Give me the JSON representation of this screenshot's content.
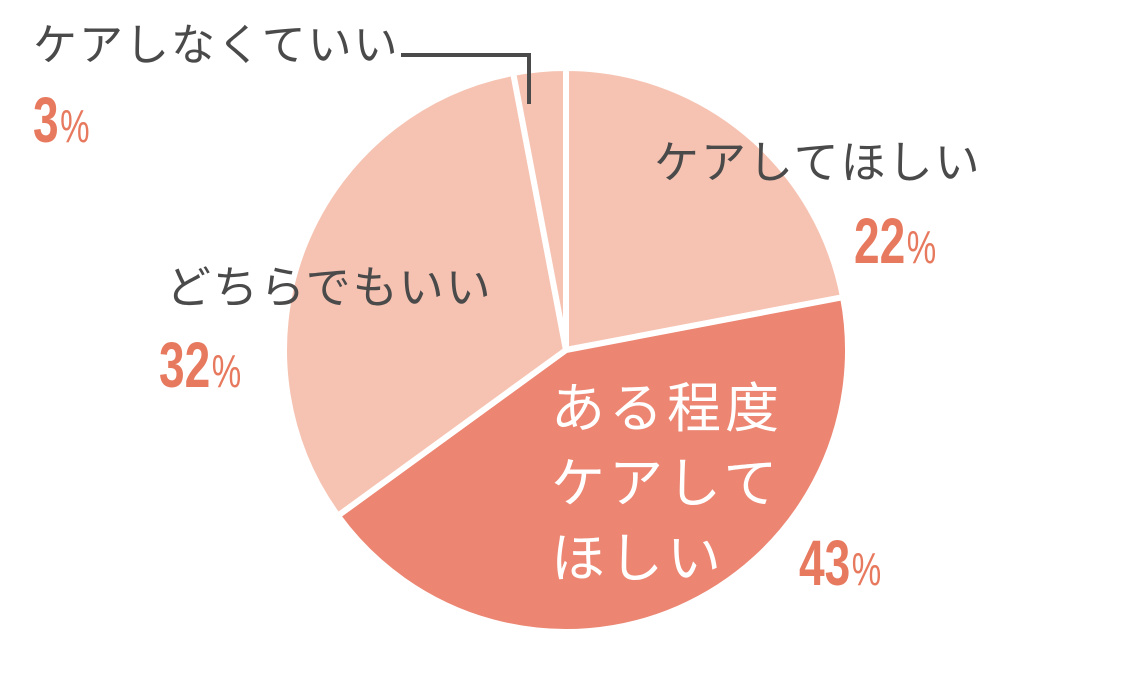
{
  "chart_data": {
    "type": "pie",
    "title": "",
    "unit": "%",
    "direction": "clockwise",
    "start_angle_deg": 0,
    "legend": "none",
    "background_color": "#ffffff",
    "separator_color": "#ffffff",
    "label_color": "#4a4a4a",
    "percent_color": "#e7795e",
    "inside_label_color": "#ffffff",
    "callout_line_color": "#4a4a4a",
    "categories": [
      "ケアしてほしい",
      "ある程度ケアしてほしい",
      "どちらでもいい",
      "ケアしなくていい"
    ],
    "values": [
      22,
      43,
      32,
      3
    ],
    "slices": [
      {
        "label": "ケアしてほしい",
        "value": 22,
        "color": "#f6c3b2",
        "label_placement": "outside-right"
      },
      {
        "label": "ある程度ケアしてほしい",
        "value": 43,
        "color": "#ec8571",
        "label_placement": "inside",
        "label_lines": [
          "ある程度",
          "ケアして",
          "ほしい"
        ]
      },
      {
        "label": "どちらでもいい",
        "value": 32,
        "color": "#f6c3b2",
        "label_placement": "outside-left"
      },
      {
        "label": "ケアしなくていい",
        "value": 3,
        "color": "#f6c3b2",
        "label_placement": "outside-top-left",
        "callout": true
      }
    ]
  }
}
